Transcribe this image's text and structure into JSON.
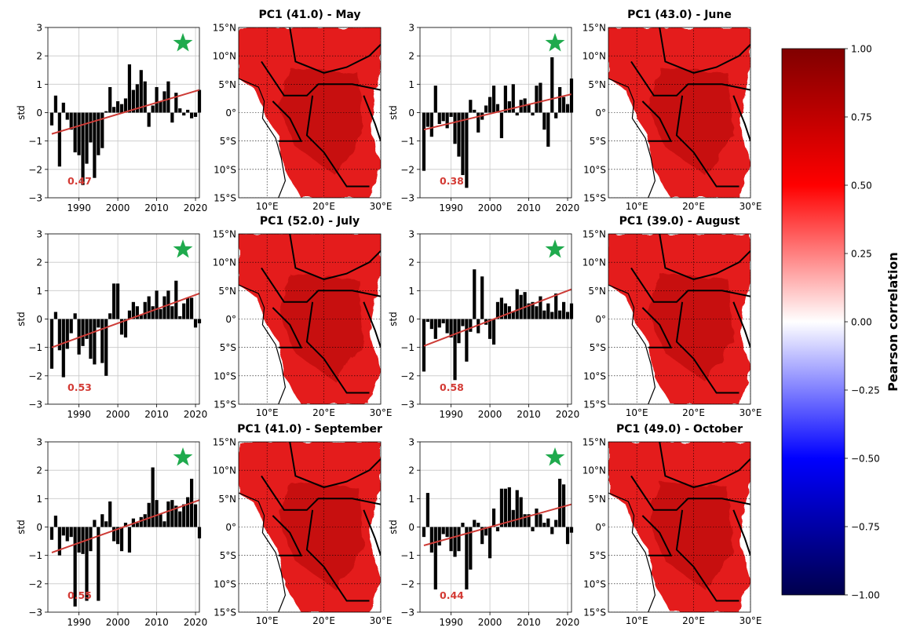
{
  "figure": {
    "colorbar": {
      "label": "Pearson correlation",
      "ticks": [
        "1.00",
        "0.75",
        "0.50",
        "0.25",
        "0.00",
        "−0.25",
        "−0.50",
        "−0.75",
        "−1.00"
      ],
      "range": [
        -1,
        1
      ],
      "colormap": "seismic",
      "colors": [
        "#00004c",
        "#0000ff",
        "#ffffff",
        "#ff0000",
        "#800000"
      ]
    },
    "ts_axes": {
      "ylabel": "std",
      "yticks": [
        "3",
        "2",
        "1",
        "0",
        "−1",
        "−2",
        "−3"
      ],
      "xticks": [
        "1990",
        "2000",
        "2010",
        "2020"
      ],
      "ylim": [
        -3,
        3
      ],
      "xlim": [
        1982,
        2021
      ],
      "bar_color": "#000000",
      "trend_color": "#cd3b36",
      "corr_color": "#d33a34",
      "star_color": "#1faa4d",
      "grid": true
    },
    "map_axes": {
      "yticks": [
        "15°N",
        "10°N",
        "5°N",
        "0°",
        "5°S",
        "10°S",
        "15°S"
      ],
      "xticks": [
        "10°E",
        "20°E",
        "30°E"
      ],
      "lon_range": [
        5,
        30
      ],
      "lat_range": [
        -15,
        15
      ],
      "grid": "dotted"
    }
  },
  "panels": [
    {
      "title": "PC1 (41.0) - May",
      "corr": "0.47",
      "star": true
    },
    {
      "title": "PC1 (43.0) - June",
      "corr": "0.38",
      "star": true
    },
    {
      "title": "PC1 (52.0) - July",
      "corr": "0.53",
      "star": true
    },
    {
      "title": "PC1 (39.0) - August",
      "corr": "0.58",
      "star": true
    },
    {
      "title": "PC1 (41.0) - September",
      "corr": "0.55",
      "star": true
    },
    {
      "title": "PC1 (49.0) - October",
      "corr": "0.44",
      "star": true
    }
  ],
  "chart_data": [
    {
      "type": "bar",
      "panel": "May",
      "x_start": 1983,
      "x_step": 1,
      "values": [
        -0.45,
        0.6,
        -1.9,
        0.35,
        -0.25,
        -0.6,
        -1.4,
        -1.5,
        -2.55,
        -1.8,
        -1.05,
        -2.3,
        -1.5,
        -1.25,
        0.05,
        0.9,
        0.2,
        0.4,
        0.3,
        0.5,
        1.7,
        0.8,
        1.0,
        1.5,
        1.1,
        -0.5,
        0.25,
        0.9,
        0.4,
        0.75,
        1.1,
        -0.35,
        0.7,
        0.15,
        -0.1,
        0.1,
        -0.2,
        -0.15,
        0.8
      ],
      "trend": {
        "y_start": -0.75,
        "y_end": 0.8
      },
      "corr_label": "0.47",
      "ylabel": "std",
      "ylim": [
        -3,
        3
      ]
    },
    {
      "type": "bar",
      "panel": "June",
      "x_start": 1983,
      "x_step": 1,
      "values": [
        -2.05,
        -0.5,
        -0.85,
        0.95,
        -0.4,
        -0.3,
        -0.55,
        -0.15,
        -1.1,
        -1.55,
        -2.2,
        -2.65,
        0.45,
        0.1,
        -0.7,
        -0.25,
        0.25,
        0.55,
        0.95,
        0.3,
        -0.9,
        0.95,
        0.4,
        1.0,
        -0.1,
        0.45,
        0.5,
        0.3,
        -0.1,
        0.95,
        1.05,
        -0.6,
        -1.2,
        1.95,
        -0.2,
        0.9,
        0.55,
        0.3,
        1.2
      ],
      "trend": {
        "y_start": -0.6,
        "y_end": 0.65
      },
      "corr_label": "0.38",
      "ylabel": "std",
      "ylim": [
        -3,
        3
      ]
    },
    {
      "type": "bar",
      "panel": "July",
      "x_start": 1983,
      "x_step": 1,
      "values": [
        -1.75,
        0.25,
        -1.1,
        -2.05,
        -1.05,
        -0.5,
        0.2,
        -1.25,
        -0.95,
        -0.7,
        -1.4,
        -1.6,
        -0.3,
        -1.55,
        -2.0,
        0.2,
        1.25,
        1.25,
        -0.55,
        -0.65,
        0.3,
        0.6,
        0.45,
        0.15,
        0.6,
        0.8,
        0.45,
        1.0,
        0.35,
        0.8,
        1.0,
        0.45,
        1.35,
        0.1,
        0.55,
        0.75,
        0.75,
        -0.3,
        -0.15
      ],
      "trend": {
        "y_start": -1.0,
        "y_end": 0.9
      },
      "corr_label": "0.53",
      "ylabel": "std",
      "ylim": [
        -3,
        3
      ]
    },
    {
      "type": "bar",
      "panel": "August",
      "x_start": 1983,
      "x_step": 1,
      "values": [
        -1.85,
        -0.1,
        -0.35,
        -0.7,
        -0.3,
        -0.15,
        -0.5,
        -0.65,
        -2.15,
        -0.85,
        -0.25,
        -1.5,
        -0.45,
        1.75,
        -0.5,
        1.5,
        -0.2,
        -0.7,
        -0.9,
        0.6,
        0.75,
        0.55,
        0.45,
        0.25,
        1.05,
        0.85,
        0.95,
        0.55,
        0.6,
        0.45,
        0.8,
        0.3,
        0.55,
        0.25,
        0.9,
        0.3,
        0.6,
        0.25,
        0.55
      ],
      "trend": {
        "y_start": -0.95,
        "y_end": 1.05
      },
      "corr_label": "0.58",
      "ylabel": "std",
      "ylim": [
        -3,
        3
      ]
    },
    {
      "type": "bar",
      "panel": "September",
      "x_start": 1983,
      "x_step": 1,
      "values": [
        -0.45,
        0.4,
        -1.0,
        -0.3,
        -0.5,
        -0.35,
        -2.8,
        -0.9,
        -0.95,
        -2.6,
        -0.85,
        0.25,
        -2.6,
        0.45,
        0.2,
        0.9,
        -0.5,
        -0.6,
        -0.85,
        0.15,
        -0.9,
        0.3,
        0.15,
        0.35,
        0.45,
        0.85,
        2.1,
        0.95,
        0.45,
        0.2,
        0.9,
        0.95,
        0.75,
        0.55,
        0.8,
        1.05,
        1.7,
        0.8,
        -0.4
      ],
      "trend": {
        "y_start": -0.9,
        "y_end": 0.95
      },
      "corr_label": "0.55",
      "ylabel": "std",
      "ylim": [
        -3,
        3
      ]
    },
    {
      "type": "bar",
      "panel": "October",
      "x_start": 1983,
      "x_step": 1,
      "values": [
        -0.35,
        1.2,
        -0.9,
        -2.2,
        -0.65,
        -0.25,
        -0.35,
        -0.85,
        -1.05,
        -0.85,
        0.15,
        -2.2,
        -1.5,
        0.25,
        0.15,
        -0.6,
        -0.3,
        -1.1,
        0.65,
        -0.15,
        1.35,
        1.35,
        1.4,
        0.6,
        1.3,
        1.05,
        0.45,
        0.45,
        -0.15,
        0.65,
        0.45,
        0.15,
        0.3,
        -0.25,
        0.25,
        1.7,
        1.5,
        -0.6,
        -0.2
      ],
      "trend": {
        "y_start": -0.65,
        "y_end": 0.8
      },
      "corr_label": "0.44",
      "ylabel": "std",
      "ylim": [
        -3,
        3
      ]
    }
  ]
}
